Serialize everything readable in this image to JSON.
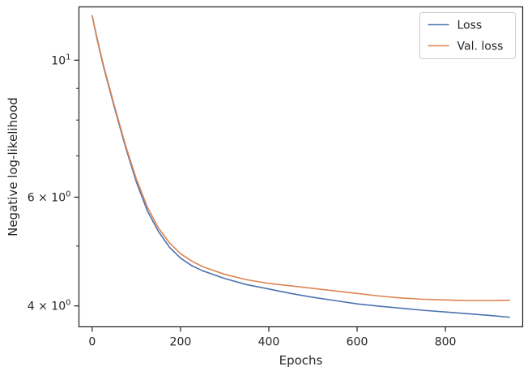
{
  "chart_data": {
    "type": "line",
    "xlabel": "Epochs",
    "ylabel": "Negative log-likelihood",
    "xlim": [
      -30,
      975
    ],
    "ylim": [
      3.7,
      12.2
    ],
    "yscale": "log",
    "xticks": [
      0,
      200,
      400,
      600,
      800
    ],
    "xtick_labels": [
      "0",
      "200",
      "400",
      "600",
      "800"
    ],
    "yticks": [
      4,
      6,
      10
    ],
    "ytick_label_parts": [
      {
        "base": "4 × 10",
        "exp": "0"
      },
      {
        "base": "6 × 10",
        "exp": "0"
      },
      {
        "base": "10",
        "exp": "1"
      }
    ],
    "minor_yticks": [
      5,
      7,
      8,
      9
    ],
    "legend_position": "upper right",
    "grid": false,
    "series": [
      {
        "name": "Loss",
        "color": "#4c72b0",
        "x": [
          0,
          10,
          25,
          50,
          75,
          100,
          125,
          150,
          175,
          200,
          225,
          250,
          300,
          350,
          400,
          450,
          500,
          550,
          600,
          650,
          700,
          750,
          800,
          850,
          900,
          945
        ],
        "y": [
          11.8,
          10.9,
          9.8,
          8.4,
          7.25,
          6.35,
          5.7,
          5.28,
          4.98,
          4.78,
          4.65,
          4.56,
          4.43,
          4.33,
          4.26,
          4.19,
          4.13,
          4.08,
          4.03,
          3.995,
          3.965,
          3.935,
          3.91,
          3.885,
          3.86,
          3.835
        ]
      },
      {
        "name": "Val. loss",
        "color": "#dd8452",
        "x": [
          0,
          10,
          25,
          50,
          75,
          100,
          125,
          150,
          175,
          200,
          225,
          250,
          300,
          350,
          400,
          450,
          500,
          550,
          600,
          650,
          700,
          750,
          800,
          850,
          900,
          945
        ],
        "y": [
          11.8,
          10.95,
          9.85,
          8.45,
          7.3,
          6.42,
          5.78,
          5.35,
          5.06,
          4.86,
          4.73,
          4.63,
          4.5,
          4.41,
          4.35,
          4.31,
          4.27,
          4.23,
          4.19,
          4.15,
          4.12,
          4.1,
          4.09,
          4.08,
          4.08,
          4.085
        ]
      }
    ]
  }
}
